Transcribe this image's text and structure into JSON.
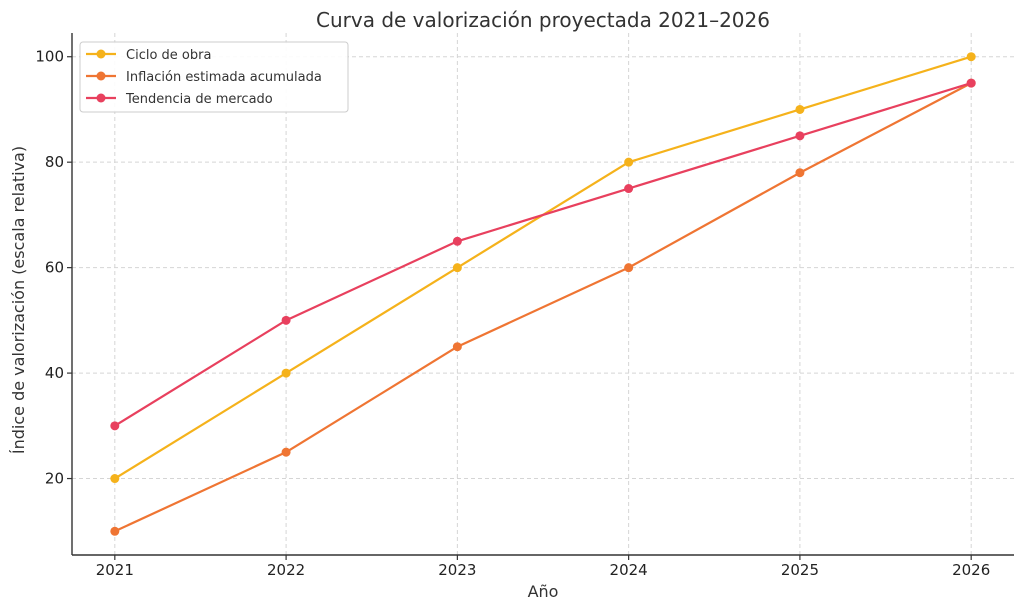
{
  "chart_data": {
    "type": "line",
    "title": "Curva de valorización proyectada 2021–2026",
    "xlabel": "Año",
    "ylabel": "Índice de valorización (escala relativa)",
    "x": [
      2021,
      2022,
      2023,
      2024,
      2025,
      2026
    ],
    "x_tick_labels": [
      "2021",
      "2022",
      "2023",
      "2024",
      "2025",
      "2026"
    ],
    "y_ticks": [
      20,
      40,
      60,
      80,
      100
    ],
    "y_tick_labels": [
      "20",
      "40",
      "60",
      "80",
      "100"
    ],
    "xlim": [
      2020.75,
      2026.25
    ],
    "ylim": [
      5.5,
      104.5
    ],
    "grid": true,
    "legend_position": "top-left",
    "series": [
      {
        "name": "Ciclo de obra",
        "color": "#F5B21B",
        "values": [
          20,
          40,
          60,
          80,
          90,
          100
        ]
      },
      {
        "name": "Inflación estimada acumulada",
        "color": "#EF7533",
        "values": [
          10,
          25,
          45,
          60,
          78,
          95
        ]
      },
      {
        "name": "Tendencia de mercado",
        "color": "#E8405E",
        "values": [
          30,
          50,
          65,
          75,
          85,
          95
        ]
      }
    ]
  }
}
